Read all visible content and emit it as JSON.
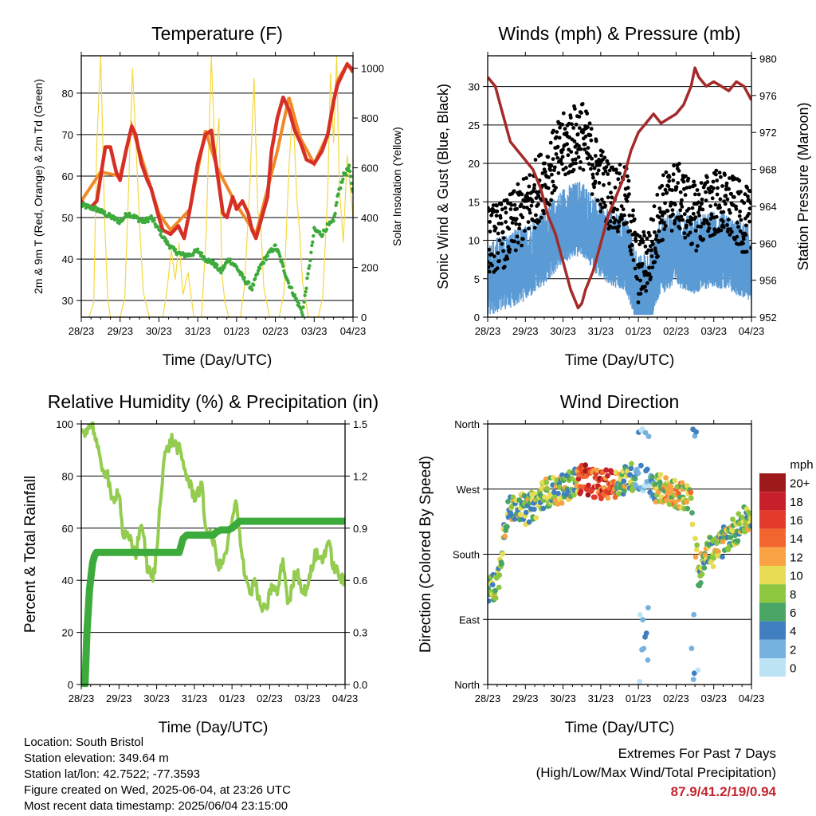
{
  "chart_data": [
    {
      "type": "line",
      "title": "Temperature (F)",
      "xlabel": "Time (Day/UTC)",
      "ylabel": "2m & 9m T (Red, Orange) & 2m Td (Green)",
      "y2label": "Solar Insolation (Yellow)",
      "x_ticks": [
        "28/23",
        "29/23",
        "30/23",
        "31/23",
        "01/23",
        "02/23",
        "03/23",
        "04/23"
      ],
      "y_ticks": [
        30,
        40,
        50,
        60,
        70,
        80
      ],
      "y2_ticks": [
        0,
        200,
        400,
        600,
        800,
        1000
      ],
      "ylim": [
        26,
        89
      ],
      "y2lim": [
        0,
        1050
      ],
      "grid": true,
      "colors": {
        "t2m": "#d62f26",
        "t9m": "#f08a28",
        "td": "#3daa3c",
        "solar": "#f5d840"
      },
      "series": [
        {
          "name": "2m T",
          "x": [
            0,
            0.1,
            0.25,
            0.4,
            0.5,
            0.62,
            0.75,
            0.9,
            1.0,
            1.15,
            1.3,
            1.4,
            1.55,
            1.7,
            1.8,
            2.0,
            2.1,
            2.3,
            2.5,
            2.65,
            2.8,
            3.0,
            3.2,
            3.35,
            3.5,
            3.65,
            3.75,
            3.9,
            4.0,
            4.15,
            4.3,
            4.4,
            4.5,
            4.65,
            4.8,
            4.9,
            5.05,
            5.2,
            5.35,
            5.5,
            5.65,
            5.8,
            6.0,
            6.2,
            6.35,
            6.5,
            6.6,
            6.75,
            6.85,
            6.95,
            7.0
          ],
          "y": [
            54,
            53,
            52.5,
            54,
            60,
            67,
            67,
            61,
            59,
            66,
            72,
            70,
            63,
            59,
            57,
            50,
            47,
            46,
            48,
            45,
            52,
            63,
            70,
            71,
            61,
            51,
            50,
            55,
            52,
            54,
            51,
            47,
            45,
            50,
            55,
            66,
            74,
            79,
            76,
            71,
            68,
            64,
            63,
            66,
            70,
            78,
            82,
            85,
            87,
            86,
            85
          ]
        },
        {
          "name": "9m T",
          "x": [
            0,
            0.5,
            1.0,
            1.3,
            2.0,
            2.3,
            2.8,
            3.2,
            3.5,
            4.0,
            4.5,
            5.05,
            5.35,
            5.65,
            6.0,
            6.35,
            6.6,
            6.85,
            7.0
          ],
          "y": [
            54,
            61,
            60,
            72,
            51,
            47,
            52,
            71,
            62,
            53,
            46,
            66,
            79,
            69,
            63,
            70,
            83,
            87,
            85
          ]
        },
        {
          "name": "2m Td",
          "x": [
            0,
            0.2,
            0.4,
            0.6,
            0.8,
            1.0,
            1.2,
            1.4,
            1.6,
            1.8,
            2.0,
            2.2,
            2.4,
            2.6,
            2.8,
            3.0,
            3.2,
            3.4,
            3.6,
            3.8,
            4.0,
            4.2,
            4.4,
            4.6,
            4.8,
            5.0,
            5.1,
            5.2,
            5.35,
            5.5,
            5.7,
            5.9,
            6.0,
            6.2,
            6.35,
            6.5,
            6.6,
            6.75,
            6.9,
            7.0
          ],
          "y": [
            53,
            52.5,
            52,
            51,
            50,
            49,
            51,
            50,
            49,
            50,
            47,
            44,
            42,
            41,
            41,
            42,
            40,
            39,
            37,
            40,
            38,
            35,
            33,
            38,
            41,
            43,
            41,
            38,
            34,
            31,
            27,
            40,
            47,
            46,
            48,
            49,
            55,
            60,
            62,
            56
          ]
        },
        {
          "name": "Solar Insolation",
          "axis": "y2",
          "x": [
            0,
            0.1,
            0.2,
            0.32,
            0.4,
            0.5,
            0.6,
            0.68,
            0.75,
            0.85,
            1,
            1.12,
            1.22,
            1.32,
            1.42,
            1.52,
            1.6,
            1.75,
            2.1,
            2.2,
            2.32,
            2.42,
            2.52,
            2.62,
            2.75,
            2.9,
            3.1,
            3.22,
            3.35,
            3.45,
            3.55,
            3.62,
            3.7,
            3.8,
            3.9,
            4.1,
            4.2,
            4.33,
            4.45,
            4.55,
            4.62,
            4.7,
            4.85,
            5.1,
            5.22,
            5.35,
            5.45,
            5.55,
            5.62,
            5.7,
            5.85,
            6.1,
            6.22,
            6.35,
            6.42,
            6.5,
            6.58,
            6.65,
            6.75,
            6.85,
            7
          ],
          "y": [
            0,
            0,
            0,
            60,
            700,
            1050,
            400,
            80,
            0,
            0,
            0,
            80,
            520,
            1000,
            650,
            320,
            100,
            0,
            0,
            100,
            270,
            150,
            300,
            90,
            180,
            0,
            0,
            350,
            1050,
            620,
            800,
            180,
            60,
            0,
            0,
            0,
            120,
            480,
            960,
            420,
            380,
            120,
            0,
            0,
            100,
            600,
            860,
            480,
            350,
            140,
            0,
            0,
            80,
            500,
            980,
            700,
            1050,
            520,
            300,
            650,
            400
          ]
        }
      ]
    },
    {
      "type": "scatter",
      "title": "Winds (mph) & Pressure (mb)",
      "xlabel": "Time (Day/UTC)",
      "ylabel": "Sonic Wind & Gust (Blue, Black)",
      "y2label": "Station Pressure (Maroon)",
      "x_ticks": [
        "28/23",
        "29/23",
        "30/23",
        "31/23",
        "01/23",
        "02/23",
        "03/23",
        "04/23"
      ],
      "y_ticks": [
        0,
        5,
        10,
        15,
        20,
        25,
        30
      ],
      "y2_ticks": [
        952,
        956,
        960,
        964,
        968,
        972,
        976,
        980
      ],
      "ylim": [
        0,
        34
      ],
      "y2lim": [
        952,
        980.3
      ],
      "grid": true,
      "colors": {
        "wind": "#5b9bd5",
        "gust": "#000000",
        "pressure": "#a52a2a"
      },
      "wind_envelope": {
        "x": [
          0,
          0.5,
          1.0,
          1.5,
          2.0,
          2.5,
          2.8,
          3.2,
          3.7,
          4.0,
          4.3,
          4.6,
          5.0,
          5.5,
          6.0,
          6.5,
          7.0
        ],
        "mean": [
          5,
          6,
          7,
          9,
          12,
          13,
          11,
          9,
          8,
          3,
          4,
          8,
          9,
          8,
          9,
          8,
          7
        ]
      },
      "gust_envelope": {
        "x": [
          0,
          0.5,
          1.0,
          1.5,
          2.0,
          2.5,
          2.8,
          3.2,
          3.7,
          4.0,
          4.3,
          4.6,
          5.0,
          5.5,
          6.0,
          6.5,
          7.0
        ],
        "mean": [
          10,
          11,
          14,
          18,
          22,
          24,
          20,
          16,
          15,
          6,
          8,
          14,
          16,
          13,
          15,
          14,
          12
        ]
      },
      "series": [
        {
          "name": "Station Pressure",
          "axis": "y2",
          "x": [
            0,
            0.2,
            0.4,
            0.6,
            0.8,
            1.0,
            1.2,
            1.4,
            1.6,
            1.8,
            2.0,
            2.2,
            2.4,
            2.5,
            2.6,
            2.8,
            3.0,
            3.2,
            3.4,
            3.6,
            3.8,
            4.0,
            4.2,
            4.4,
            4.6,
            4.8,
            5.0,
            5.2,
            5.4,
            5.5,
            5.6,
            5.8,
            6.0,
            6.2,
            6.4,
            6.6,
            6.8,
            7.0
          ],
          "y": [
            978,
            977,
            974,
            971,
            970,
            969,
            968,
            966,
            963,
            961,
            958,
            955,
            953,
            953.5,
            955,
            957,
            960,
            963,
            965,
            967,
            970,
            972,
            973,
            974,
            973,
            973.5,
            974,
            975,
            977,
            979,
            978,
            977,
            977.5,
            977,
            976.5,
            977.5,
            977,
            975.5
          ]
        }
      ]
    },
    {
      "type": "line",
      "title": "Relative Humidity (%) & Precipitation (in)",
      "xlabel": "Time (Day/UTC)",
      "ylabel": "Percent & Total Rainfall",
      "x_ticks": [
        "28/23",
        "29/23",
        "30/23",
        "31/23",
        "01/23",
        "02/23",
        "03/23",
        "04/23"
      ],
      "y_ticks": [
        0,
        20,
        40,
        60,
        80,
        100
      ],
      "y2_ticks": [
        "0.0",
        "0.3",
        "0.6",
        "0.9",
        "1.2",
        "1.5"
      ],
      "ylim": [
        0,
        100
      ],
      "y2lim": [
        0,
        1.5
      ],
      "grid": true,
      "colors": {
        "rh": "#93cc4f",
        "precip": "#3daa3c"
      },
      "series": [
        {
          "name": "Relative Humidity",
          "x": [
            0,
            0.15,
            0.3,
            0.4,
            0.5,
            0.7,
            0.8,
            1.0,
            1.1,
            1.3,
            1.45,
            1.6,
            1.75,
            1.9,
            2.0,
            2.1,
            2.2,
            2.4,
            2.6,
            2.8,
            3.0,
            3.2,
            3.3,
            3.5,
            3.65,
            3.8,
            4.0,
            4.1,
            4.2,
            4.35,
            4.5,
            4.6,
            4.75,
            4.9,
            5.05,
            5.2,
            5.35,
            5.5,
            5.7,
            5.9,
            6.05,
            6.2,
            6.4,
            6.55,
            6.7,
            6.85,
            7.0
          ],
          "y": [
            97,
            98,
            100,
            93,
            85,
            80,
            70,
            75,
            58,
            55,
            50,
            63,
            45,
            40,
            50,
            72,
            87,
            94,
            90,
            80,
            72,
            76,
            60,
            55,
            45,
            48,
            62,
            70,
            58,
            42,
            35,
            40,
            30,
            28,
            38,
            35,
            48,
            30,
            45,
            35,
            40,
            50,
            48,
            55,
            45,
            42,
            38
          ]
        },
        {
          "name": "Total Rainfall",
          "axis": "y2",
          "x": [
            0,
            0.1,
            0.15,
            0.22,
            0.3,
            0.35,
            0.4,
            0.5,
            1.0,
            2.0,
            2.6,
            2.7,
            2.8,
            3.2,
            3.5,
            3.6,
            3.7,
            3.9,
            4.0,
            4.2,
            5.0,
            6.0,
            7.0
          ],
          "y": [
            0,
            0,
            0.3,
            0.55,
            0.7,
            0.74,
            0.76,
            0.76,
            0.76,
            0.76,
            0.76,
            0.84,
            0.86,
            0.86,
            0.86,
            0.88,
            0.89,
            0.89,
            0.9,
            0.94,
            0.94,
            0.94,
            0.94
          ]
        }
      ]
    },
    {
      "type": "scatter",
      "title": "Wind Direction",
      "xlabel": "Time (Day/UTC)",
      "ylabel": "Direction (Colored By Speed)",
      "x_ticks": [
        "28/23",
        "29/23",
        "30/23",
        "31/23",
        "01/23",
        "02/23",
        "03/23",
        "04/23"
      ],
      "y_tick_labels": [
        "North",
        "East",
        "South",
        "West",
        "North"
      ],
      "ylim": [
        0,
        360
      ],
      "grid": true,
      "direction_trend": {
        "x": [
          0,
          0.2,
          0.3,
          0.4,
          0.5,
          0.8,
          1.0,
          1.3,
          1.5,
          2.0,
          2.5,
          3.0,
          3.5,
          4.0,
          4.3,
          4.6,
          5.0,
          5.4,
          5.6,
          5.8,
          6.0,
          6.3,
          6.6,
          6.9,
          7.0
        ],
        "y": [
          130,
          135,
          150,
          200,
          235,
          250,
          240,
          250,
          265,
          270,
          285,
          275,
          280,
          290,
          275,
          270,
          265,
          255,
          150,
          190,
          180,
          200,
          215,
          230,
          225
        ]
      },
      "legend": {
        "title": "mph",
        "labels": [
          "20+",
          "18",
          "16",
          "14",
          "12",
          "10",
          "8",
          "6",
          "4",
          "2",
          "0"
        ],
        "colors": [
          "#9e1a1a",
          "#c8202a",
          "#e23b2c",
          "#f0662e",
          "#f8a243",
          "#e8dc55",
          "#8dc63f",
          "#4aa665",
          "#3f7fbf",
          "#76b2e0",
          "#bde4f5"
        ]
      }
    }
  ],
  "info": {
    "location": "Location: South Bristol",
    "elevation": "Station elevation: 349.64 m",
    "latlon": "Station lat/lon: 42.7522; -77.3593",
    "created": "Figure created on Wed, 2025-06-04, at 23:26 UTC",
    "recent": "Most recent data timestamp: 2025/06/04 23:15:00"
  },
  "extremes": {
    "title": "Extremes For Past 7 Days",
    "subtitle": "(High/Low/Max Wind/Total Precipitation)",
    "values": "87.9/41.2/19/0.94"
  }
}
